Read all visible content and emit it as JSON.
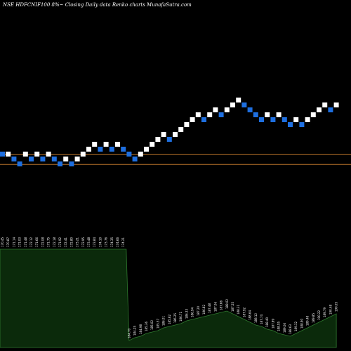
{
  "header": {
    "title": "NSE HDFCNIF100  8%~  Closing Daily data  Renko  charts MunafaSutra.com"
  },
  "chart_data": {
    "type": "renko",
    "title": "NSE HDFCNIF100  8%~  Closing Daily data  Renko  charts MunafaSutra.com",
    "colors": {
      "up_brick": "#ffffff",
      "down_brick": "#1e6fe0",
      "reference_line": "#b8732a",
      "volume_area": "#0b2a0b",
      "volume_edge": "#2f7a2f"
    },
    "bricks": [
      {
        "value": 44,
        "direction": "down"
      },
      {
        "value": 44,
        "direction": "up"
      },
      {
        "value": 43,
        "direction": "down"
      },
      {
        "value": 42,
        "direction": "down"
      },
      {
        "value": 44,
        "direction": "up"
      },
      {
        "value": 43,
        "direction": "down"
      },
      {
        "value": 44,
        "direction": "up"
      },
      {
        "value": 43,
        "direction": "down"
      },
      {
        "value": 44,
        "direction": "up"
      },
      {
        "value": 43,
        "direction": "down"
      },
      {
        "value": 42,
        "direction": "down"
      },
      {
        "value": 43,
        "direction": "up"
      },
      {
        "value": 42,
        "direction": "down"
      },
      {
        "value": 43,
        "direction": "up"
      },
      {
        "value": 44,
        "direction": "up"
      },
      {
        "value": 45,
        "direction": "up"
      },
      {
        "value": 46,
        "direction": "up"
      },
      {
        "value": 45,
        "direction": "down"
      },
      {
        "value": 46,
        "direction": "up"
      },
      {
        "value": 45,
        "direction": "down"
      },
      {
        "value": 46,
        "direction": "up"
      },
      {
        "value": 45,
        "direction": "down"
      },
      {
        "value": 44,
        "direction": "down"
      },
      {
        "value": 43,
        "direction": "down"
      },
      {
        "value": 44,
        "direction": "up"
      },
      {
        "value": 45,
        "direction": "up"
      },
      {
        "value": 46,
        "direction": "up"
      },
      {
        "value": 47,
        "direction": "up"
      },
      {
        "value": 48,
        "direction": "up"
      },
      {
        "value": 47,
        "direction": "down"
      },
      {
        "value": 48,
        "direction": "up"
      },
      {
        "value": 49,
        "direction": "up"
      },
      {
        "value": 50,
        "direction": "up"
      },
      {
        "value": 51,
        "direction": "up"
      },
      {
        "value": 52,
        "direction": "up"
      },
      {
        "value": 51,
        "direction": "down"
      },
      {
        "value": 52,
        "direction": "up"
      },
      {
        "value": 53,
        "direction": "up"
      },
      {
        "value": 52,
        "direction": "down"
      },
      {
        "value": 53,
        "direction": "up"
      },
      {
        "value": 54,
        "direction": "up"
      },
      {
        "value": 55,
        "direction": "up"
      },
      {
        "value": 54,
        "direction": "down"
      },
      {
        "value": 53,
        "direction": "down"
      },
      {
        "value": 52,
        "direction": "down"
      },
      {
        "value": 51,
        "direction": "down"
      },
      {
        "value": 52,
        "direction": "up"
      },
      {
        "value": 51,
        "direction": "down"
      },
      {
        "value": 52,
        "direction": "up"
      },
      {
        "value": 51,
        "direction": "down"
      },
      {
        "value": 50,
        "direction": "down"
      },
      {
        "value": 51,
        "direction": "up"
      },
      {
        "value": 50,
        "direction": "down"
      },
      {
        "value": 51,
        "direction": "up"
      },
      {
        "value": 52,
        "direction": "up"
      },
      {
        "value": 53,
        "direction": "up"
      },
      {
        "value": 54,
        "direction": "up"
      },
      {
        "value": 53,
        "direction": "down"
      },
      {
        "value": 54,
        "direction": "up"
      }
    ],
    "reference_lines": [
      43.9,
      41.9
    ],
    "value_labels": [
      "170.45",
      "170.87",
      "171.14",
      "171.03",
      "171.48",
      "172.12",
      "171.66",
      "172.08",
      "171.75",
      "172.18",
      "171.92",
      "172.41",
      "172.80",
      "173.21",
      "172.95",
      "173.48",
      "173.84",
      "174.10",
      "173.76",
      "174.35",
      "174.66",
      "174.21",
      "184.70",
      "184.25",
      "184.98",
      "185.36",
      "185.02",
      "185.57",
      "186.01",
      "185.62",
      "186.25",
      "186.71",
      "186.33",
      "186.94",
      "187.20",
      "186.82",
      "187.48",
      "187.06",
      "187.66",
      "188.02",
      "187.55",
      "188.31",
      "187.92",
      "188.64",
      "188.12",
      "187.74",
      "188.40",
      "187.89",
      "188.55",
      "189.06",
      "188.63",
      "189.32",
      "188.90",
      "189.48",
      "189.85",
      "190.22",
      "189.79",
      "190.48",
      "190.05"
    ],
    "volume": [
      0.7,
      0.7,
      0.7,
      0.7,
      0.7,
      0.7,
      0.7,
      0.7,
      0.7,
      0.7,
      0.7,
      0.7,
      0.7,
      0.7,
      0.7,
      0.7,
      0.7,
      0.7,
      0.7,
      0.7,
      0.7,
      0.7,
      0.05,
      0.07,
      0.08,
      0.1,
      0.11,
      0.12,
      0.14,
      0.15,
      0.16,
      0.17,
      0.19,
      0.2,
      0.21,
      0.22,
      0.23,
      0.24,
      0.25,
      0.26,
      0.24,
      0.22,
      0.2,
      0.18,
      0.16,
      0.15,
      0.13,
      0.12,
      0.1,
      0.09,
      0.08,
      0.1,
      0.12,
      0.14,
      0.16,
      0.18,
      0.2,
      0.22,
      0.24
    ]
  }
}
